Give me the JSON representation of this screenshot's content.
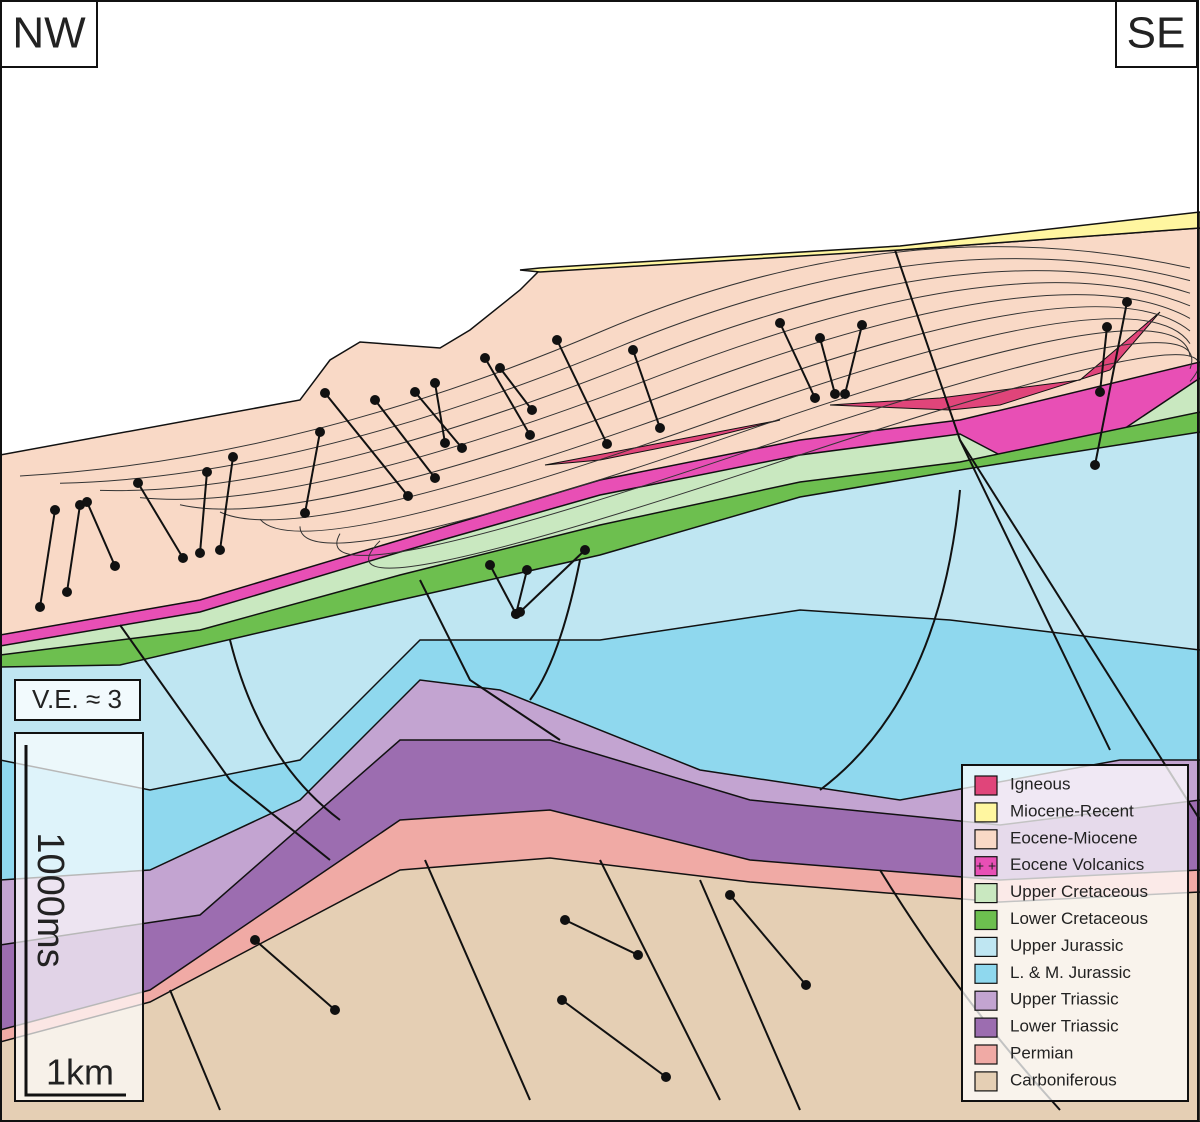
{
  "labels": {
    "left": "NW",
    "right": "SE"
  },
  "scale": {
    "ve": "V.E. ≈ 3",
    "vertical": "1000ms",
    "horizontal": "1km"
  },
  "legend": {
    "items": [
      {
        "label": "Igneous",
        "color": "#e0457a"
      },
      {
        "label": "Miocene-Recent",
        "color": "#fff6a0"
      },
      {
        "label": "Eocene-Miocene",
        "color": "#f9d9c6"
      },
      {
        "label": "Eocene Volcanics",
        "color": "#e84fb5"
      },
      {
        "label": "Upper Cretaceous",
        "color": "#c9e8c0"
      },
      {
        "label": "Lower Cretaceous",
        "color": "#6dbf4f"
      },
      {
        "label": "Upper Jurassic",
        "color": "#bfe6f2"
      },
      {
        "label": "L. & M. Jurassic",
        "color": "#8fd8ee"
      },
      {
        "label": "Upper Triassic",
        "color": "#c3a4d1"
      },
      {
        "label": "Lower Triassic",
        "color": "#9c6db0"
      },
      {
        "label": "Permian",
        "color": "#f0aaa5"
      },
      {
        "label": "Carboniferous",
        "color": "#e5cfb4"
      }
    ]
  }
}
